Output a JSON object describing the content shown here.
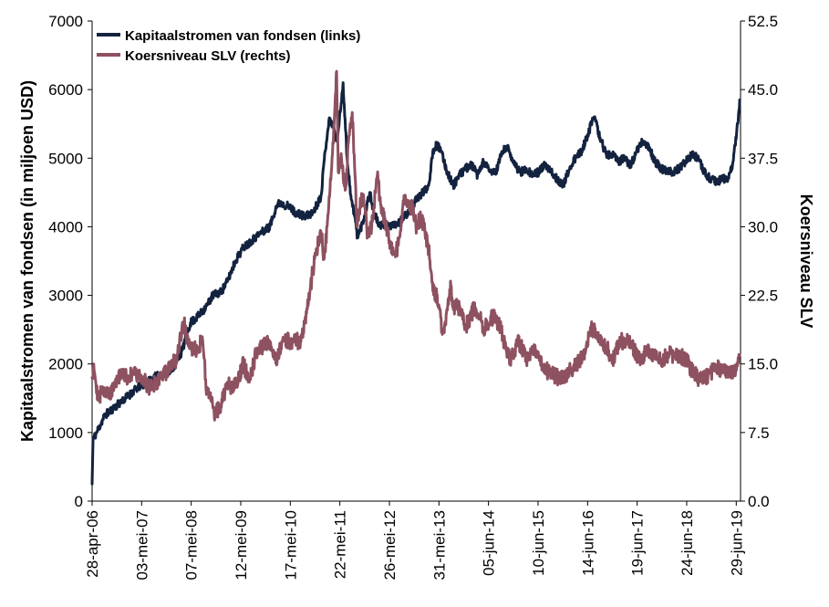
{
  "chart_data": {
    "type": "line",
    "title": "",
    "y_left": {
      "label": "Kapitaalstromen van fondsen (in miljoen USD)",
      "min": 0,
      "max": 7000,
      "ticks": [
        "0",
        "1000",
        "2000",
        "3000",
        "4000",
        "5000",
        "6000",
        "7000"
      ]
    },
    "y_right": {
      "label": "Koersniveau SLV",
      "min": 0,
      "max": 52.5,
      "ticks": [
        "0.0",
        "7.5",
        "15.0",
        "22.5",
        "30.0",
        "37.5",
        "45.0",
        "52.5"
      ]
    },
    "x_axis": {
      "start": "2006-04-28",
      "end": "2019-07-31",
      "tick_dates": [
        "2006-04-28",
        "2007-05-03",
        "2008-05-07",
        "2009-05-12",
        "2010-05-17",
        "2011-05-22",
        "2012-05-26",
        "2013-05-31",
        "2014-06-05",
        "2015-06-10",
        "2016-06-14",
        "2017-06-19",
        "2018-06-24",
        "2019-06-29"
      ],
      "tick_labels": [
        "28-apr-06",
        "03-mei-07",
        "07-mei-08",
        "12-mei-09",
        "17-mei-10",
        "22-mei-11",
        "26-mei-12",
        "31-mei-13",
        "05-jun-14",
        "10-jun-15",
        "14-jun-16",
        "19-jun-17",
        "24-jun-18",
        "29-jun-19"
      ]
    },
    "legend": {
      "position": "top-left",
      "entries": [
        {
          "label": "Kapitaalstromen van fondsen (links)",
          "color": "#13233f"
        },
        {
          "label": "Koersniveau SLV (rechts)",
          "color": "#8e5160"
        }
      ]
    },
    "grid": false,
    "series": [
      {
        "name": "Kapitaalstromen van fondsen (links)",
        "axis": "left",
        "color": "#13233f",
        "points": [
          [
            "2006-04-28",
            250
          ],
          [
            "2006-05-05",
            900
          ],
          [
            "2006-06-01",
            1000
          ],
          [
            "2006-08-01",
            1250
          ],
          [
            "2006-10-01",
            1350
          ],
          [
            "2006-12-01",
            1450
          ],
          [
            "2007-02-01",
            1550
          ],
          [
            "2007-04-01",
            1650
          ],
          [
            "2007-06-01",
            1720
          ],
          [
            "2007-08-01",
            1800
          ],
          [
            "2007-10-01",
            1850
          ],
          [
            "2007-12-01",
            1900
          ],
          [
            "2008-01-15",
            2000
          ],
          [
            "2008-03-01",
            2200
          ],
          [
            "2008-05-01",
            2600
          ],
          [
            "2008-07-01",
            2700
          ],
          [
            "2008-09-01",
            2850
          ],
          [
            "2008-10-15",
            3000
          ],
          [
            "2008-12-15",
            3050
          ],
          [
            "2009-02-01",
            3200
          ],
          [
            "2009-04-01",
            3500
          ],
          [
            "2009-06-01",
            3700
          ],
          [
            "2009-08-01",
            3800
          ],
          [
            "2009-10-01",
            3900
          ],
          [
            "2009-12-15",
            4000
          ],
          [
            "2010-02-01",
            4300
          ],
          [
            "2010-03-01",
            4350
          ],
          [
            "2010-05-01",
            4300
          ],
          [
            "2010-07-01",
            4200
          ],
          [
            "2010-09-01",
            4150
          ],
          [
            "2010-11-01",
            4200
          ],
          [
            "2011-01-01",
            4450
          ],
          [
            "2011-02-01",
            5100
          ],
          [
            "2011-03-01",
            5550
          ],
          [
            "2011-04-01",
            5500
          ],
          [
            "2011-04-25",
            5250
          ],
          [
            "2011-05-10",
            5400
          ],
          [
            "2011-06-01",
            5800
          ],
          [
            "2011-06-15",
            6100
          ],
          [
            "2011-07-15",
            5000
          ],
          [
            "2011-08-15",
            4400
          ],
          [
            "2011-09-10",
            4150
          ],
          [
            "2011-10-01",
            3850
          ],
          [
            "2011-11-15",
            4100
          ],
          [
            "2011-12-31",
            4500
          ],
          [
            "2012-02-01",
            4200
          ],
          [
            "2012-03-15",
            4000
          ],
          [
            "2012-05-01",
            4050
          ],
          [
            "2012-06-15",
            4000
          ],
          [
            "2012-08-01",
            4050
          ],
          [
            "2012-09-15",
            4150
          ],
          [
            "2012-11-01",
            4250
          ],
          [
            "2012-12-15",
            4400
          ],
          [
            "2013-02-01",
            4500
          ],
          [
            "2013-03-15",
            4600
          ],
          [
            "2013-04-15",
            5100
          ],
          [
            "2013-05-15",
            5200
          ],
          [
            "2013-06-15",
            5100
          ],
          [
            "2013-08-01",
            4800
          ],
          [
            "2013-09-15",
            4600
          ],
          [
            "2013-11-01",
            4750
          ],
          [
            "2013-12-15",
            4850
          ],
          [
            "2014-02-01",
            4900
          ],
          [
            "2014-03-15",
            4750
          ],
          [
            "2014-05-01",
            4950
          ],
          [
            "2014-06-15",
            4800
          ],
          [
            "2014-08-01",
            4800
          ],
          [
            "2014-09-15",
            5100
          ],
          [
            "2014-11-01",
            5150
          ],
          [
            "2014-12-15",
            4900
          ],
          [
            "2015-02-01",
            4800
          ],
          [
            "2015-03-15",
            4850
          ],
          [
            "2015-05-01",
            4750
          ],
          [
            "2015-06-15",
            4800
          ],
          [
            "2015-08-01",
            4900
          ],
          [
            "2015-09-15",
            4800
          ],
          [
            "2015-11-01",
            4700
          ],
          [
            "2015-12-15",
            4600
          ],
          [
            "2016-02-01",
            4850
          ],
          [
            "2016-03-15",
            5000
          ],
          [
            "2016-05-01",
            5100
          ],
          [
            "2016-06-15",
            5350
          ],
          [
            "2016-08-01",
            5600
          ],
          [
            "2016-09-15",
            5300
          ],
          [
            "2016-11-01",
            5050
          ],
          [
            "2016-12-15",
            5050
          ],
          [
            "2017-02-01",
            4950
          ],
          [
            "2017-03-15",
            5000
          ],
          [
            "2017-05-01",
            4900
          ],
          [
            "2017-06-15",
            5100
          ],
          [
            "2017-08-01",
            5250
          ],
          [
            "2017-09-15",
            5150
          ],
          [
            "2017-11-01",
            4950
          ],
          [
            "2017-12-15",
            4850
          ],
          [
            "2018-02-01",
            4800
          ],
          [
            "2018-03-15",
            4800
          ],
          [
            "2018-05-01",
            4850
          ],
          [
            "2018-06-15",
            4950
          ],
          [
            "2018-08-01",
            5050
          ],
          [
            "2018-09-15",
            5000
          ],
          [
            "2018-11-01",
            4800
          ],
          [
            "2018-12-15",
            4700
          ],
          [
            "2019-02-01",
            4650
          ],
          [
            "2019-03-15",
            4700
          ],
          [
            "2019-05-01",
            4700
          ],
          [
            "2019-06-01",
            4900
          ],
          [
            "2019-06-20",
            5200
          ],
          [
            "2019-07-10",
            5500
          ],
          [
            "2019-07-25",
            5850
          ]
        ]
      },
      {
        "name": "Koersniveau SLV (rechts)",
        "axis": "right",
        "color": "#8e5160",
        "points": [
          [
            "2006-04-28",
            13.5
          ],
          [
            "2006-05-10",
            15
          ],
          [
            "2006-06-15",
            11
          ],
          [
            "2006-07-15",
            12.5
          ],
          [
            "2006-09-01",
            11.5
          ],
          [
            "2006-10-15",
            13
          ],
          [
            "2006-12-01",
            13.8
          ],
          [
            "2007-02-01",
            13.5
          ],
          [
            "2007-03-01",
            14
          ],
          [
            "2007-05-01",
            13.5
          ],
          [
            "2007-07-01",
            12.5
          ],
          [
            "2007-08-15",
            12.8
          ],
          [
            "2007-10-01",
            13.5
          ],
          [
            "2007-12-01",
            14.5
          ],
          [
            "2008-01-15",
            15.5
          ],
          [
            "2008-03-15",
            19.5
          ],
          [
            "2008-04-15",
            17
          ],
          [
            "2008-06-01",
            16.5
          ],
          [
            "2008-08-01",
            17.5
          ],
          [
            "2008-09-01",
            12
          ],
          [
            "2008-10-01",
            11
          ],
          [
            "2008-11-01",
            9.5
          ],
          [
            "2008-12-15",
            10.5
          ],
          [
            "2009-02-01",
            13
          ],
          [
            "2009-03-01",
            12.5
          ],
          [
            "2009-05-01",
            13.5
          ],
          [
            "2009-06-01",
            15
          ],
          [
            "2009-07-15",
            13
          ],
          [
            "2009-09-01",
            16
          ],
          [
            "2009-11-01",
            17
          ],
          [
            "2009-12-15",
            17.5
          ],
          [
            "2010-02-01",
            15.5
          ],
          [
            "2010-04-01",
            17.5
          ],
          [
            "2010-06-01",
            17.5
          ],
          [
            "2010-08-01",
            17.5
          ],
          [
            "2010-09-15",
            20.5
          ],
          [
            "2010-10-15",
            23.5
          ],
          [
            "2010-11-15",
            26.5
          ],
          [
            "2010-12-31",
            29.5
          ],
          [
            "2011-01-25",
            26.5
          ],
          [
            "2011-02-25",
            31.5
          ],
          [
            "2011-03-25",
            37.5
          ],
          [
            "2011-04-15",
            43
          ],
          [
            "2011-04-28",
            47
          ],
          [
            "2011-05-10",
            36
          ],
          [
            "2011-06-01",
            38
          ],
          [
            "2011-07-01",
            34
          ],
          [
            "2011-08-01",
            40
          ],
          [
            "2011-08-22",
            42.5
          ],
          [
            "2011-09-15",
            35
          ],
          [
            "2011-09-26",
            30
          ],
          [
            "2011-10-15",
            32
          ],
          [
            "2011-11-15",
            33.5
          ],
          [
            "2011-12-15",
            29
          ],
          [
            "2012-01-15",
            30
          ],
          [
            "2012-02-28",
            36
          ],
          [
            "2012-03-15",
            33
          ],
          [
            "2012-05-01",
            30
          ],
          [
            "2012-06-01",
            28
          ],
          [
            "2012-07-01",
            27
          ],
          [
            "2012-08-01",
            28
          ],
          [
            "2012-09-15",
            33
          ],
          [
            "2012-10-15",
            32.5
          ],
          [
            "2012-11-15",
            32
          ],
          [
            "2012-12-15",
            30
          ],
          [
            "2013-01-15",
            31
          ],
          [
            "2013-02-15",
            29.5
          ],
          [
            "2013-03-15",
            27.5
          ],
          [
            "2013-04-15",
            23
          ],
          [
            "2013-05-15",
            22.5
          ],
          [
            "2013-06-28",
            18.5
          ],
          [
            "2013-07-15",
            19.5
          ],
          [
            "2013-08-28",
            23.5
          ],
          [
            "2013-09-15",
            21
          ],
          [
            "2013-10-15",
            21.5
          ],
          [
            "2013-12-15",
            19
          ],
          [
            "2014-02-15",
            21
          ],
          [
            "2014-03-15",
            20.5
          ],
          [
            "2014-05-01",
            19
          ],
          [
            "2014-06-15",
            19.5
          ],
          [
            "2014-07-15",
            20.5
          ],
          [
            "2014-09-01",
            19
          ],
          [
            "2014-10-15",
            16.5
          ],
          [
            "2014-11-15",
            15.5
          ],
          [
            "2015-01-15",
            17.5
          ],
          [
            "2015-03-15",
            15.5
          ],
          [
            "2015-05-15",
            16.5
          ],
          [
            "2015-07-15",
            14.5
          ],
          [
            "2015-09-15",
            14
          ],
          [
            "2015-11-15",
            13.5
          ],
          [
            "2015-12-31",
            13.5
          ],
          [
            "2016-02-15",
            14.5
          ],
          [
            "2016-04-01",
            15
          ],
          [
            "2016-05-15",
            16
          ],
          [
            "2016-07-05",
            19
          ],
          [
            "2016-08-15",
            18.5
          ],
          [
            "2016-10-01",
            17
          ],
          [
            "2016-11-15",
            16.5
          ],
          [
            "2016-12-20",
            15.5
          ],
          [
            "2017-02-15",
            17.5
          ],
          [
            "2017-04-15",
            17.5
          ],
          [
            "2017-06-15",
            16
          ],
          [
            "2017-07-15",
            15.5
          ],
          [
            "2017-09-01",
            16.5
          ],
          [
            "2017-10-15",
            16
          ],
          [
            "2017-12-15",
            15.5
          ],
          [
            "2018-02-15",
            16
          ],
          [
            "2018-04-15",
            16
          ],
          [
            "2018-06-15",
            15.5
          ],
          [
            "2018-08-15",
            14
          ],
          [
            "2018-09-15",
            13.5
          ],
          [
            "2018-11-15",
            13.5
          ],
          [
            "2019-01-15",
            14.5
          ],
          [
            "2019-03-15",
            14.5
          ],
          [
            "2019-05-15",
            14
          ],
          [
            "2019-06-15",
            14
          ],
          [
            "2019-07-10",
            15
          ],
          [
            "2019-07-25",
            16
          ]
        ]
      }
    ]
  }
}
